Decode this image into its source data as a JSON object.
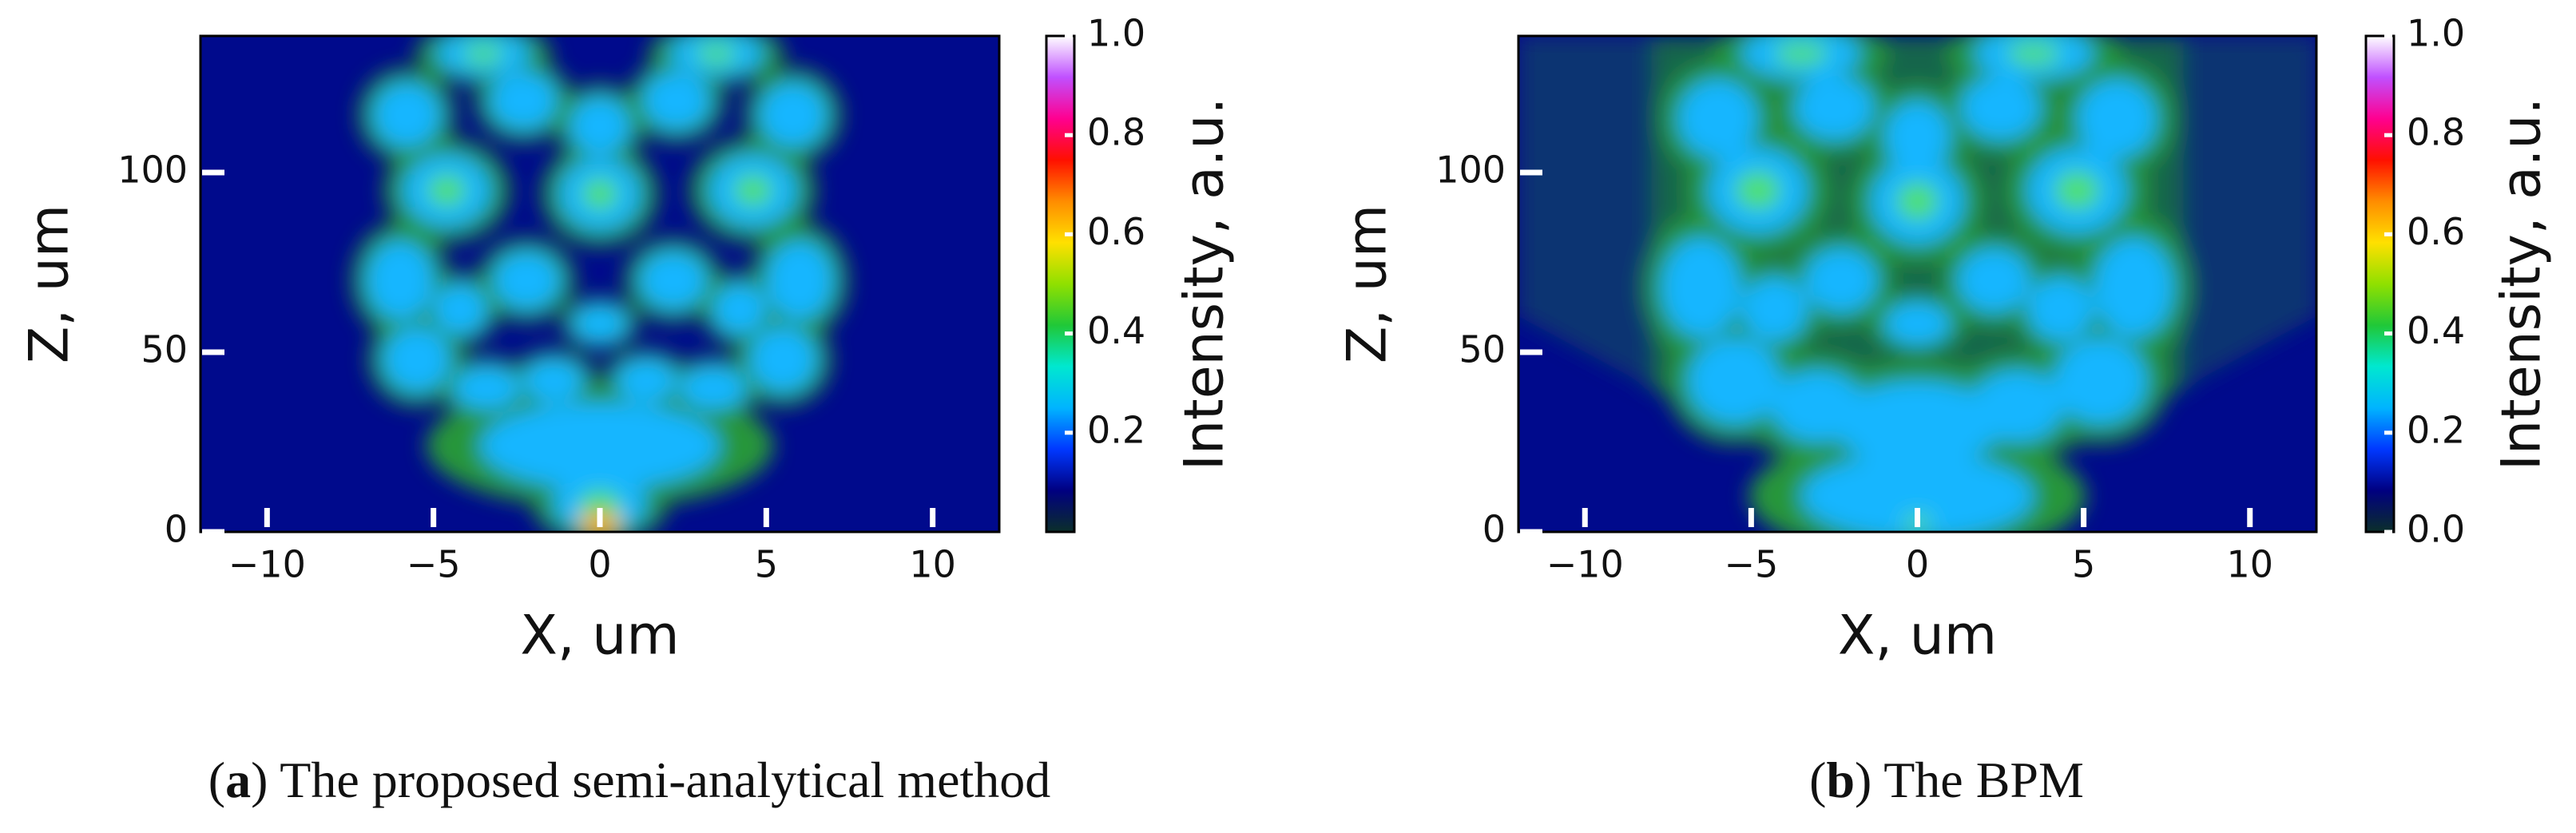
{
  "chart_data": [
    {
      "type": "heatmap",
      "xlabel": "X, um",
      "ylabel": "Z, um",
      "xlim": [
        -12,
        12
      ],
      "ylim": [
        0,
        138
      ],
      "xticks": [
        {
          "value": -10,
          "label": "−10"
        },
        {
          "value": -5,
          "label": "−5"
        },
        0,
        5,
        10
      ],
      "yticks": [
        0,
        50,
        100
      ],
      "colorbar": {
        "label": "Intensity, a.u.",
        "lim": [
          0,
          1
        ],
        "ticks": [
          0.2,
          0.4,
          0.6,
          0.8,
          {
            "value": 1,
            "label": "1.0"
          }
        ],
        "colormap": [
          "#0b2f2a",
          "#000080",
          "#0038ff",
          "#00b4ff",
          "#00e8d0",
          "#20c838",
          "#90e000",
          "#ffe000",
          "#ff8c00",
          "#ff1000",
          "#ff0090",
          "#c050ff",
          "#ffffff"
        ]
      },
      "caption": [
        "(",
        "a",
        ") The proposed semi-analytical method"
      ]
    },
    {
      "type": "heatmap",
      "xlabel": "X, um",
      "ylabel": "Z, um",
      "xlim": [
        -12,
        12
      ],
      "ylim": [
        0,
        138
      ],
      "xticks": [
        {
          "value": -10,
          "label": "−10"
        },
        {
          "value": -5,
          "label": "−5"
        },
        0,
        5,
        10
      ],
      "yticks": [
        0,
        50,
        100
      ],
      "colorbar": {
        "label": "Intensity, a.u.",
        "lim": [
          0,
          1
        ],
        "ticks": [
          {
            "value": 0,
            "label": "0.0"
          },
          0.2,
          0.4,
          0.6,
          0.8,
          {
            "value": 1,
            "label": "1.0"
          }
        ],
        "colormap": [
          "#0b2f2a",
          "#000080",
          "#0038ff",
          "#00b4ff",
          "#00e8d0",
          "#20c838",
          "#90e000",
          "#ffe000",
          "#ff8c00",
          "#ff1000",
          "#ff0090",
          "#c050ff",
          "#ffffff"
        ]
      },
      "caption": [
        "(",
        "b",
        ") The BPM"
      ]
    }
  ]
}
